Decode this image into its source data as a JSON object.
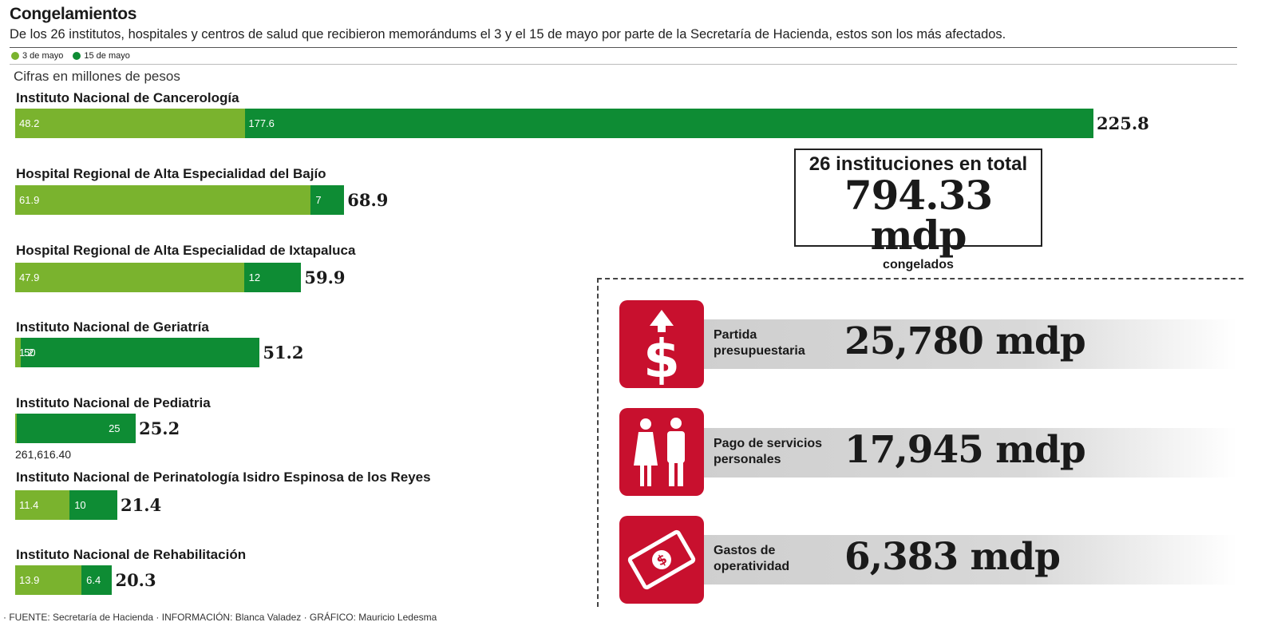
{
  "header": {
    "title": "Congelamientos",
    "subtitle": "De los 26 institutos, hospitales y centros de salud que recibieron memorándums el 3 y el 15 de mayo por parte de la Secretaría de Hacienda, estos son los más afectados.",
    "units": "Cifras en millones de pesos"
  },
  "colors": {
    "may3": "#7ab32e",
    "may15": "#0e8c34",
    "icon_red": "#c8102e"
  },
  "chart_data": {
    "type": "bar",
    "orientation": "horizontal",
    "stacked": true,
    "units_label": "Cifras en millones de pesos",
    "categories": [
      "Instituto Nacional de Cancerología",
      "Hospital Regional de Alta Especialidad del Bajío",
      "Hospital Regional de Alta Especialidad de Ixtapaluca",
      "Instituto Nacional de Geriatría",
      "Instituto Nacional de Pediatria",
      "Instituto Nacional de Perinatología Isidro Espinosa de los Reyes",
      "Instituto Nacional de Rehabilitación"
    ],
    "series": [
      {
        "name": "3 de mayo",
        "values": [
          48.2,
          61.9,
          47.9,
          1.2,
          0.2,
          11.4,
          13.9
        ],
        "labels": [
          "48.2",
          "61.9",
          "47.9",
          "1.2",
          "",
          "11.4",
          "13.9"
        ]
      },
      {
        "name": "15 de mayo",
        "values": [
          177.6,
          7,
          12,
          50,
          25,
          10,
          6.4
        ],
        "labels": [
          "177.6",
          "7",
          "12",
          "50",
          "25",
          "10",
          "6.4"
        ]
      }
    ],
    "totals": [
      "225.8",
      "68.9",
      "59.9",
      "51.2",
      "25.2",
      "21.4",
      "20.3"
    ],
    "extra_note": "261,616.40",
    "legend": "top-left"
  },
  "summary": {
    "line1": "26 instituciones en total",
    "amount": "794.33 mdp",
    "line3": "congelados"
  },
  "items": [
    {
      "label": "Partida presupuestaria",
      "value": "25,780 mdp",
      "icon": "dollar-up-arrow-icon"
    },
    {
      "label": "Pago de servicios personales",
      "value": "17,945 mdp",
      "icon": "people-icon"
    },
    {
      "label": "Gastos de operatividad",
      "value": "6,383 mdp",
      "icon": "banknote-icon"
    }
  ],
  "footer": "· FUENTE: Secretaría de Hacienda · INFORMACIÓN: Blanca Valadez · GRÁFICO: Mauricio Ledesma"
}
